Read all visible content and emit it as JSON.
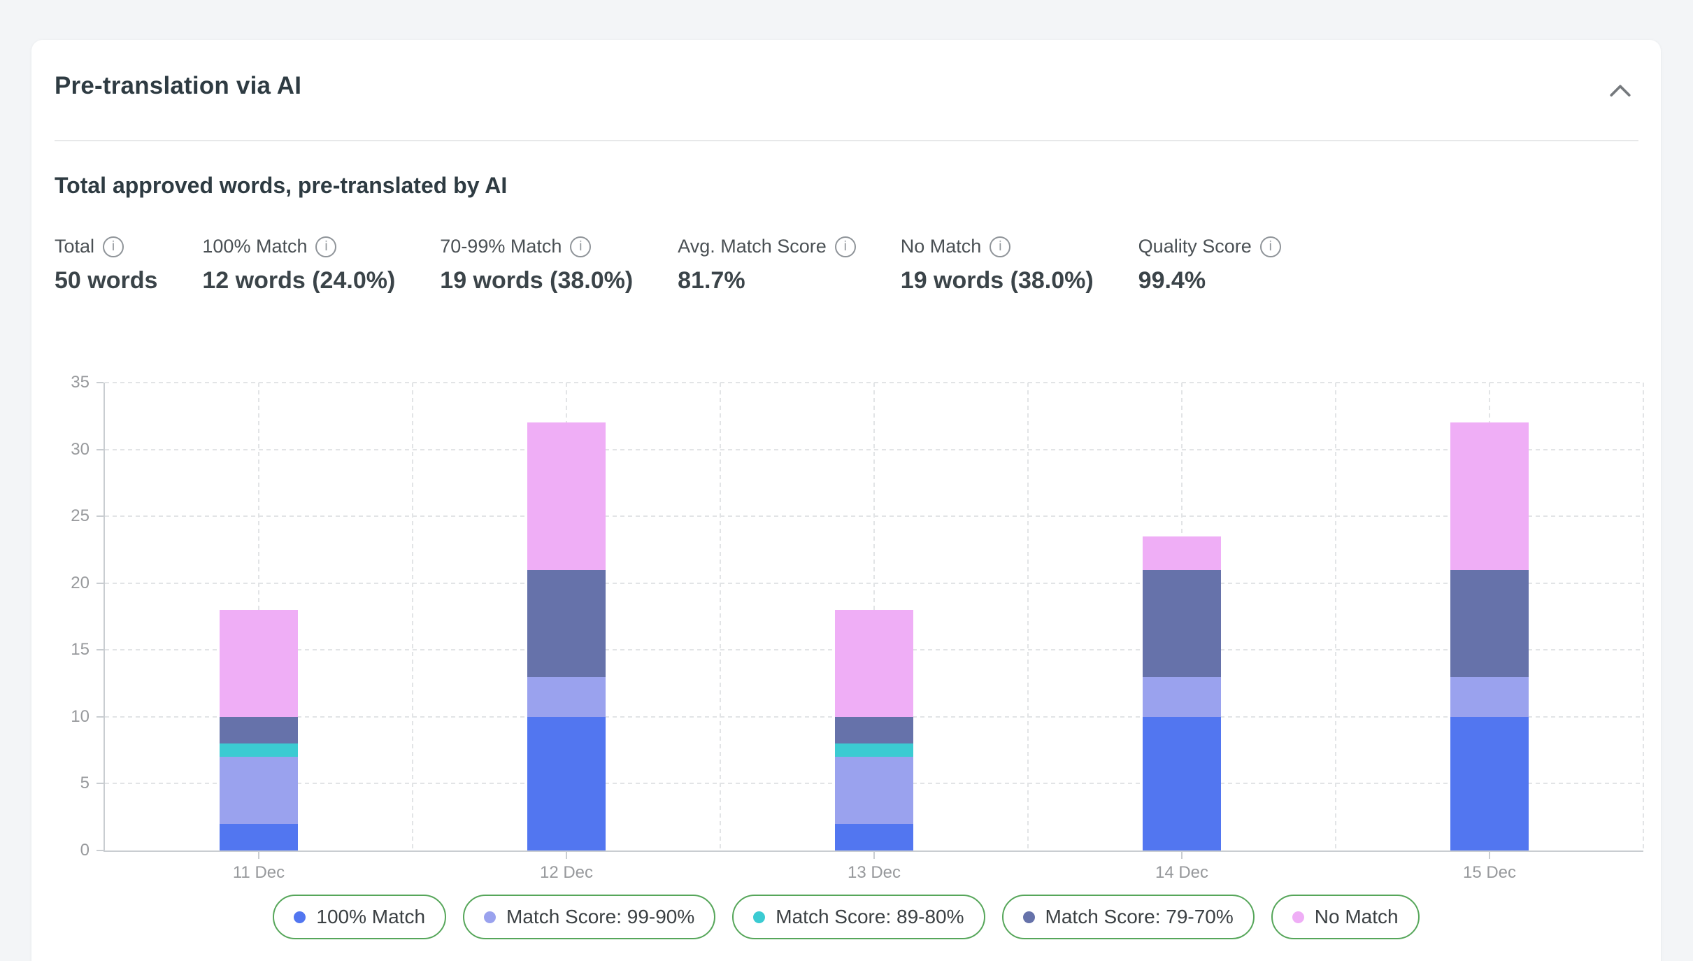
{
  "header": {
    "title": "Pre-translation via AI",
    "collapse_icon": "chevron-up-icon"
  },
  "section": {
    "subtitle": "Total approved words, pre-translated by AI"
  },
  "stats": [
    {
      "id": "total",
      "label": "Total",
      "info_icon": "info-icon",
      "value": "50 words"
    },
    {
      "id": "match-100",
      "label": "100% Match",
      "info_icon": "info-icon",
      "value": "12 words (24.0%)"
    },
    {
      "id": "match-70-99",
      "label": "70-99% Match",
      "info_icon": "info-icon",
      "value": "19 words (38.0%)"
    },
    {
      "id": "avg-match-score",
      "label": "Avg. Match Score",
      "info_icon": "info-icon",
      "value": "81.7%"
    },
    {
      "id": "no-match",
      "label": "No Match",
      "info_icon": "info-icon",
      "value": "19 words (38.0%)"
    },
    {
      "id": "quality-score",
      "label": "Quality Score",
      "info_icon": "info-icon",
      "value": "99.4%"
    }
  ],
  "chart_data": {
    "type": "bar",
    "stacked": true,
    "categories": [
      "11 Dec",
      "12 Dec",
      "13 Dec",
      "14 Dec",
      "15 Dec"
    ],
    "series": [
      {
        "name": "100% Match",
        "color": "#5276F0",
        "values": [
          2,
          10,
          2,
          10,
          10
        ]
      },
      {
        "name": "Match Score: 99-90%",
        "color": "#9AA2EE",
        "values": [
          5,
          3,
          5,
          3,
          3
        ]
      },
      {
        "name": "Match Score: 89-80%",
        "color": "#3BCBD2",
        "values": [
          1,
          0,
          1,
          0,
          0
        ]
      },
      {
        "name": "Match Score: 79-70%",
        "color": "#6672AA",
        "values": [
          2,
          8,
          2,
          8,
          8
        ]
      },
      {
        "name": "No Match",
        "color": "#EFAEF6",
        "values": [
          8,
          11,
          8,
          2.5,
          11
        ]
      }
    ],
    "totals": [
      18,
      32,
      18,
      23.5,
      32
    ],
    "title": "",
    "xlabel": "",
    "ylabel": "",
    "ylim": [
      0,
      35
    ],
    "yticks": [
      0,
      5,
      10,
      15,
      20,
      25,
      30,
      35
    ],
    "grid": "dashed",
    "legend_position": "bottom"
  },
  "colors": {
    "page_background": "#f3f5f7",
    "card_background": "#ffffff",
    "legend_border_green": "#56a65a",
    "axis_gray": "#c9cdd1",
    "grid_gray": "#e2e4e6",
    "text_dark": "#2e3b42",
    "text_gray": "#97999c"
  }
}
